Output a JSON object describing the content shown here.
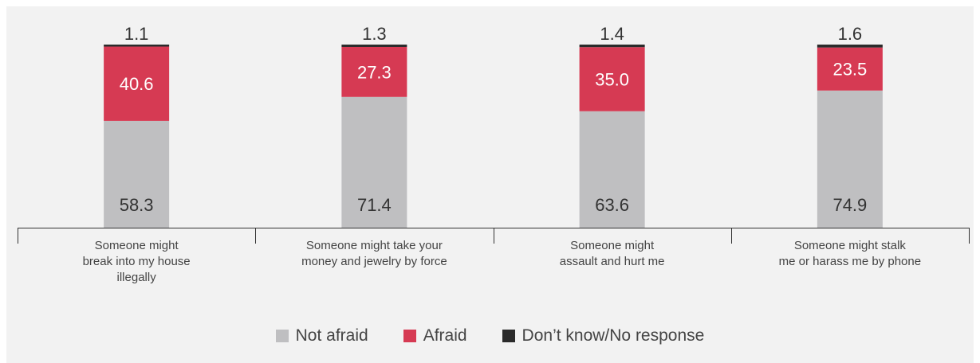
{
  "chart_data": {
    "type": "bar",
    "stacked": true,
    "categories": [
      [
        "Someone might",
        "break into my house",
        "illegally"
      ],
      [
        "Someone might take your",
        "money and jewelry by force"
      ],
      [
        "Someone might",
        "assault and hurt me"
      ],
      [
        "Someone might stalk",
        "me or harass me by phone"
      ]
    ],
    "series": [
      {
        "name": "Not afraid",
        "values": [
          58.3,
          71.4,
          63.6,
          74.9
        ],
        "color": "#bfbfc1",
        "label_color": "#333333"
      },
      {
        "name": "Afraid",
        "values": [
          40.6,
          27.3,
          35.0,
          23.5
        ],
        "color": "#d63a53",
        "label_color": "#ffffff"
      },
      {
        "name": "Don’t know/No response",
        "values": [
          1.1,
          1.3,
          1.4,
          1.6
        ],
        "color": "#2b2b2b",
        "label_color": "#333333"
      }
    ],
    "value_labels": [
      [
        "58.3",
        "71.4",
        "63.6",
        "74.9"
      ],
      [
        "40.6",
        "27.3",
        "35.0",
        "23.5"
      ],
      [
        "1.1",
        "1.3",
        "1.4",
        "1.6"
      ]
    ],
    "ylim": [
      0,
      100
    ],
    "grid": false,
    "legend_position": "bottom-center"
  }
}
